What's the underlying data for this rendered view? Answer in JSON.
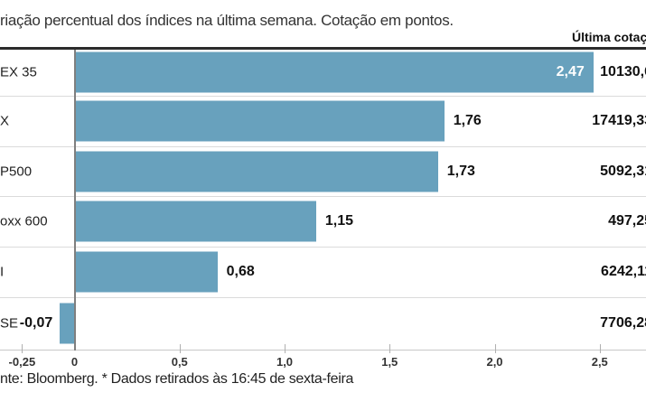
{
  "subtitle": "riação percentual dos índices na última semana. Cotação em pontos.",
  "quote_column_header": "Última cotaç",
  "footer": "nte: Bloomberg.  * Dados retirados às 16:45 de sexta-feira",
  "colors": {
    "bar": "#68A1BD",
    "header_rule": "#2b2b2b",
    "row_separator": "#dbdbdb",
    "baseline": "#c8c8c8",
    "zero_axis": "#7f7f7f",
    "inside_value_text": "#ffffff",
    "text": "#222222"
  },
  "chart_data": {
    "type": "bar",
    "orientation": "horizontal",
    "title": "",
    "subtitle_visible_text": "riação percentual dos índices na última semana. Cotação em pontos.",
    "xlabel": "",
    "ylabel": "",
    "grid": "row-separators-only",
    "x_axis": {
      "ticks": [
        "-0,25",
        "0",
        "0,5",
        "1,0",
        "1,5",
        "2,0",
        "2,5"
      ],
      "tick_values": [
        -0.25,
        0,
        0.5,
        1.0,
        1.5,
        2.0,
        2.5
      ],
      "range": [
        -0.27,
        2.72
      ]
    },
    "rows": [
      {
        "label": "EX 35",
        "value": 2.47,
        "value_label": "2,47",
        "quote": "10130,6",
        "value_placement": "inside"
      },
      {
        "label": "X",
        "value": 1.76,
        "value_label": "1,76",
        "quote": "17419,33",
        "value_placement": "right"
      },
      {
        "label": "P500",
        "value": 1.73,
        "value_label": "1,73",
        "quote": "5092,31",
        "value_placement": "right"
      },
      {
        "label": "oxx 600",
        "value": 1.15,
        "value_label": "1,15",
        "quote": "497,25",
        "value_placement": "right"
      },
      {
        "label": "I",
        "value": 0.68,
        "value_label": "0,68",
        "quote": "6242,11",
        "value_placement": "right"
      },
      {
        "label": "SE",
        "value": -0.07,
        "value_label": "-0,07",
        "quote": "7706,28",
        "value_placement": "left"
      }
    ]
  }
}
